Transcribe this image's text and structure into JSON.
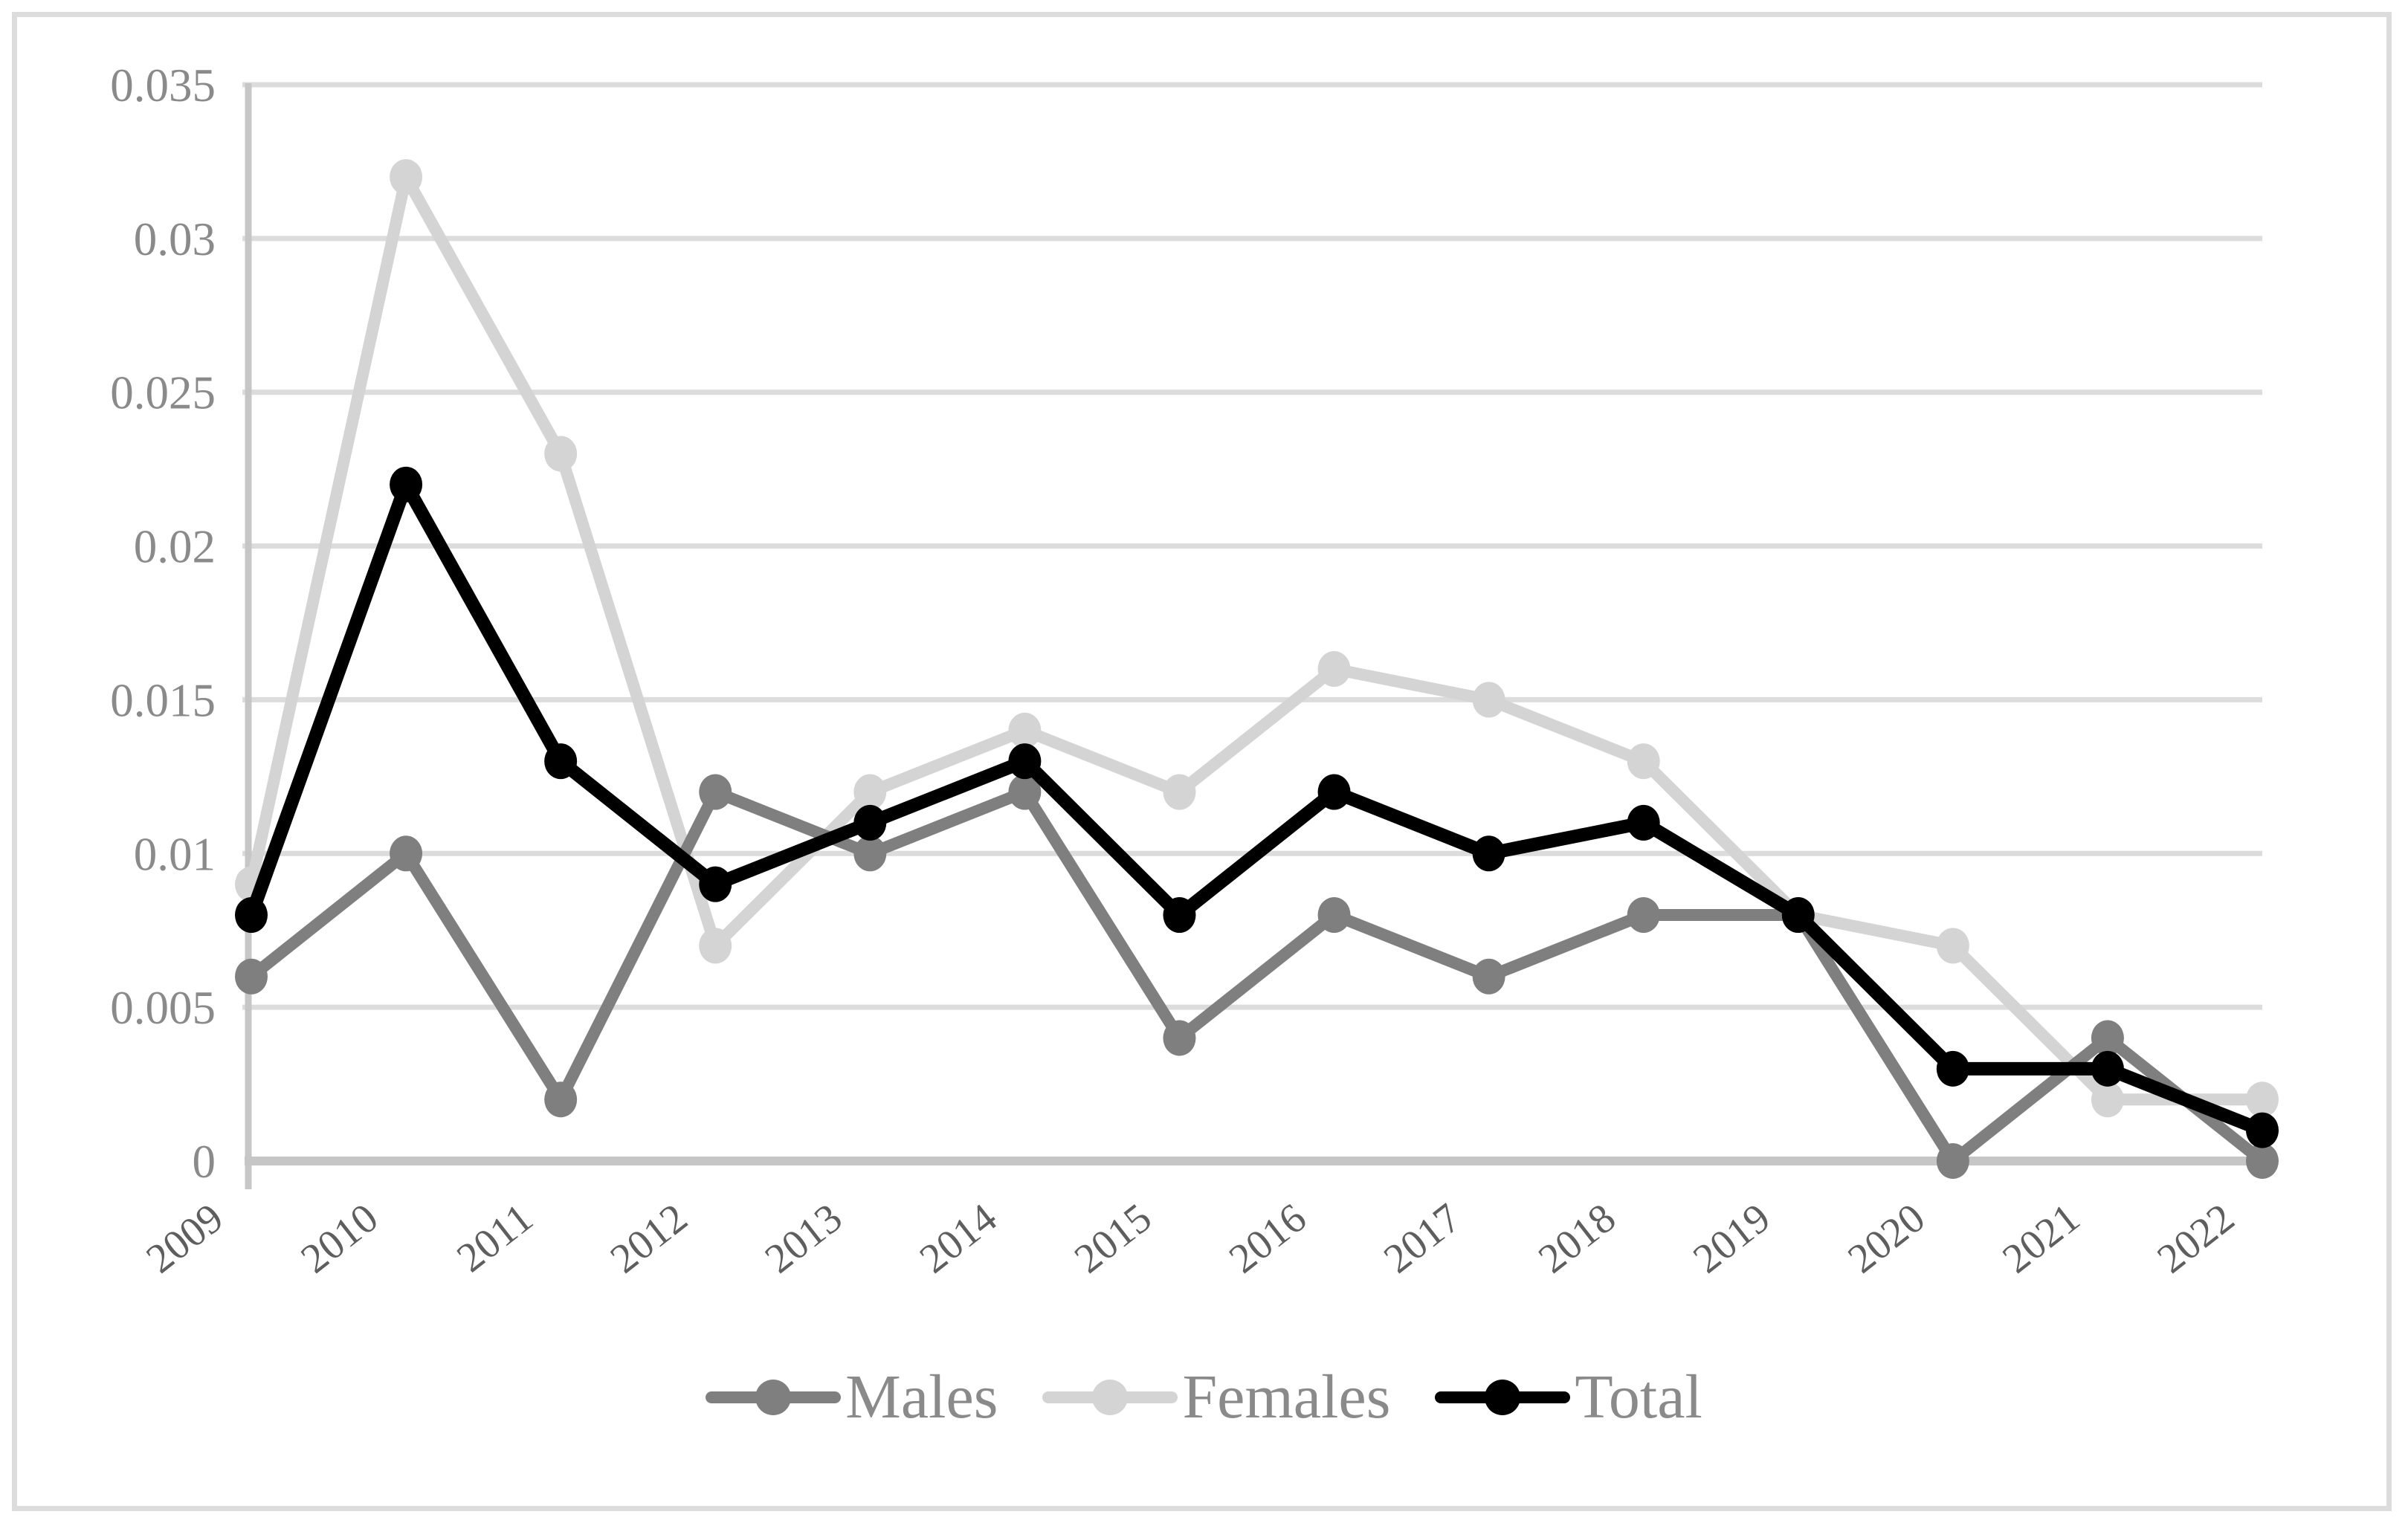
{
  "figure": {
    "background": "#ffffff",
    "border_color": "#dcdcdc"
  },
  "chart_data": {
    "type": "line",
    "categories": [
      "2009",
      "2010",
      "2011",
      "2012",
      "2013",
      "2014",
      "2015",
      "2016",
      "2017",
      "2018",
      "2019",
      "2020",
      "2021",
      "2022"
    ],
    "series": [
      {
        "name": "Males",
        "color": "#7f7f7f",
        "line_width": 16,
        "values": [
          0.006,
          0.01,
          0.002,
          0.012,
          0.01,
          0.012,
          0.004,
          0.008,
          0.006,
          0.008,
          0.008,
          0.0,
          0.004,
          0.0
        ]
      },
      {
        "name": "Females",
        "color": "#d4d4d4",
        "line_width": 16,
        "values": [
          0.009,
          0.032,
          0.023,
          0.007,
          0.012,
          0.014,
          0.012,
          0.016,
          0.015,
          0.013,
          0.008,
          0.007,
          0.002,
          0.002
        ]
      },
      {
        "name": "Total",
        "color": "#000000",
        "line_width": 18,
        "values": [
          0.008,
          0.022,
          0.013,
          0.009,
          0.011,
          0.013,
          0.008,
          0.012,
          0.01,
          0.011,
          0.008,
          0.003,
          0.003,
          0.001
        ]
      }
    ],
    "draw_order": [
      "Females",
      "Males",
      "Total"
    ],
    "title": "",
    "xlabel": "",
    "ylabel": "",
    "ylim": [
      0,
      0.035
    ],
    "yticks": [
      0,
      0.005,
      0.01,
      0.015,
      0.02,
      0.025,
      0.03,
      0.035
    ],
    "ytick_labels": [
      "0",
      "0.005",
      "0.01",
      "0.015",
      "0.02",
      "0.025",
      "0.03",
      "0.035"
    ],
    "xtick_rotation_deg": -38,
    "grid": "horizontal",
    "gridline_color": "#dcdcdc",
    "axis_line_color": "#c6c6c6",
    "ytick_label_color": "#8a8a8a",
    "xtick_label_color": "#5e5e5e",
    "marker": "circle",
    "legend_position": "bottom"
  },
  "legend": {
    "items": [
      {
        "label": "Males",
        "color": "#7f7f7f"
      },
      {
        "label": "Females",
        "color": "#d4d4d4"
      },
      {
        "label": "Total",
        "color": "#000000"
      }
    ]
  }
}
